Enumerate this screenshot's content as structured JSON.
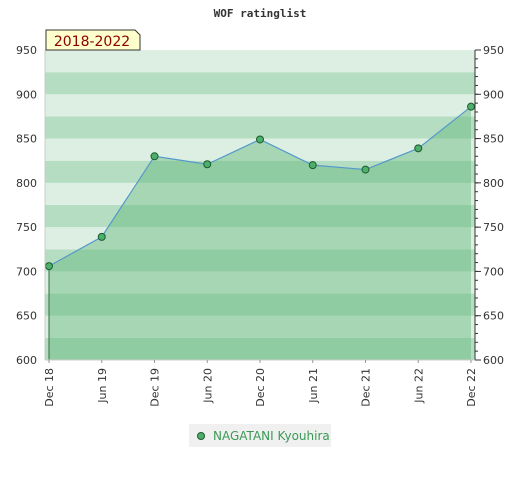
{
  "chart_data": {
    "type": "area",
    "title": "WOF ratinglist",
    "period_label": "2018-2022",
    "x": [
      "Dec 18",
      "Jun 19",
      "Dec 19",
      "Jun 20",
      "Dec 20",
      "Jun 21",
      "Dec 21",
      "Jun 22",
      "Dec 22"
    ],
    "series": [
      {
        "name": "NAGATANI Kyouhira",
        "values": [
          706,
          739,
          830,
          821,
          849,
          820,
          815,
          839,
          886
        ]
      }
    ],
    "ylim": [
      600,
      950
    ],
    "yticks": [
      600,
      650,
      700,
      750,
      800,
      850,
      900,
      950
    ],
    "y_axes": "left and right",
    "grid": false,
    "legend_position": "bottom-center",
    "colors": {
      "line": "#5599cc",
      "marker_fill": "#4caf6a",
      "marker_stroke": "#1f5a2f",
      "area_fill": "#63b87a",
      "band_dark": "#b5ddc1",
      "band_light": "#dcefe2",
      "badge_bg": "#ffffcc"
    }
  }
}
